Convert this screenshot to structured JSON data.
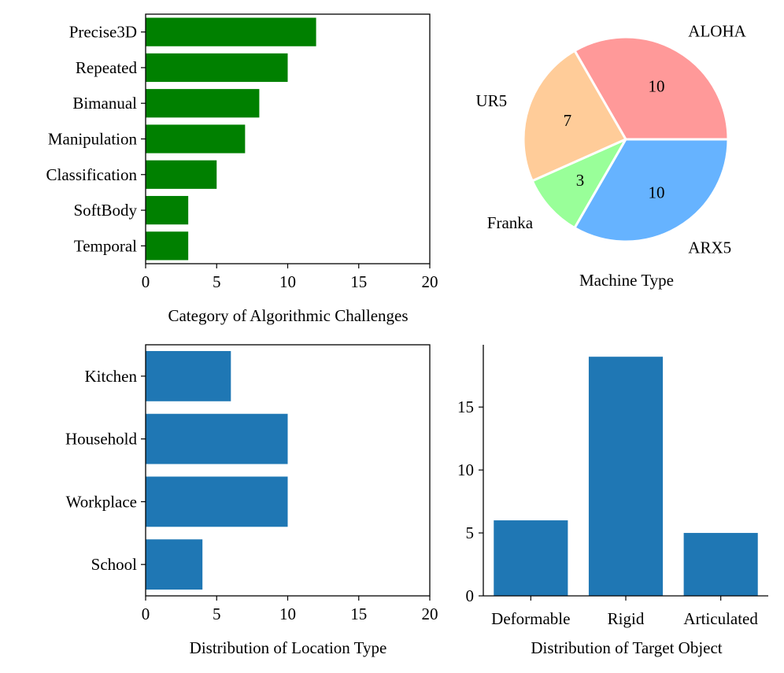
{
  "chart_data": [
    {
      "id": "algorithmic",
      "type": "bar",
      "orientation": "horizontal",
      "categories": [
        "Precise3D",
        "Repeated",
        "Bimanual",
        "Manipulation",
        "Classification",
        "SoftBody",
        "Temporal"
      ],
      "values": [
        12,
        10,
        8,
        7,
        5,
        3,
        3
      ],
      "xlabel": "Category of Algorithmic Challenges",
      "xlim": [
        0,
        20
      ],
      "xticks": [
        "0",
        "5",
        "10",
        "15",
        "20"
      ],
      "color": "#008000"
    },
    {
      "id": "machine",
      "type": "pie",
      "labels": [
        "ALOHA",
        "UR5",
        "Franka",
        "ARX5"
      ],
      "values": [
        10,
        7,
        3,
        10
      ],
      "value_labels": [
        "10",
        "7",
        "3",
        "10"
      ],
      "colors": [
        "#ff9999",
        "#ffcc99",
        "#99ff99",
        "#66b3ff"
      ],
      "xlabel": "Machine Type"
    },
    {
      "id": "location",
      "type": "bar",
      "orientation": "horizontal",
      "categories": [
        "Kitchen",
        "Household",
        "Workplace",
        "School"
      ],
      "values": [
        6,
        10,
        10,
        4
      ],
      "xlabel": "Distribution of Location Type",
      "xlim": [
        0,
        20
      ],
      "xticks": [
        "0",
        "5",
        "10",
        "15",
        "20"
      ],
      "color": "#1f77b4"
    },
    {
      "id": "target",
      "type": "bar",
      "orientation": "vertical",
      "categories": [
        "Deformable",
        "Rigid",
        "Articulated"
      ],
      "values": [
        6,
        19,
        5
      ],
      "xlabel": "Distribution of Target Object",
      "ylim": [
        0,
        19.95
      ],
      "yticks": [
        "0",
        "5",
        "10",
        "15"
      ],
      "color": "#1f77b4"
    }
  ]
}
